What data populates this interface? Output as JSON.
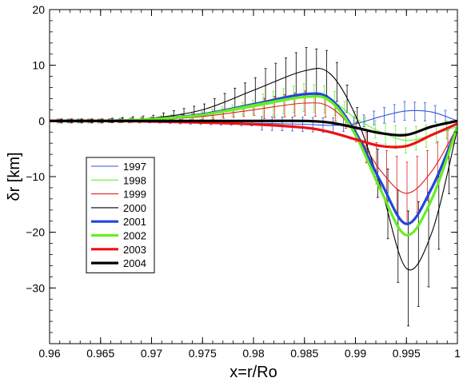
{
  "chart_data": {
    "type": "line",
    "xlabel": "x=r/Ro",
    "ylabel": "δr [km]",
    "xlim": [
      0.96,
      1.0
    ],
    "ylim": [
      -40,
      20
    ],
    "x_ticks": [
      0.96,
      0.965,
      0.97,
      0.975,
      0.98,
      0.985,
      0.99,
      0.995,
      1.0
    ],
    "x_tick_labels": [
      "0.96",
      "0.965",
      "0.97",
      "0.975",
      "0.98",
      "0.985",
      "0.99",
      "0.995",
      "1"
    ],
    "y_ticks": [
      -30,
      -20,
      -10,
      0,
      10,
      20
    ],
    "y_tick_labels": [
      "−30",
      "−20",
      "−10",
      "0",
      "10",
      "20"
    ],
    "grid": false,
    "legend_position": "left",
    "x": [
      0.96,
      0.965,
      0.97,
      0.975,
      0.98,
      0.985,
      0.9875,
      0.99,
      0.9925,
      0.995,
      0.9975,
      1.0
    ],
    "series": [
      {
        "name": "1997",
        "color": "#3355dd",
        "width": 1,
        "values": [
          0,
          0,
          0,
          -0.2,
          -0.4,
          -0.6,
          -0.8,
          -0.5,
          0.8,
          1.8,
          1.6,
          0
        ]
      },
      {
        "name": "1998",
        "color": "#66ee33",
        "width": 1,
        "values": [
          0,
          0,
          0.3,
          1.0,
          2.5,
          4.2,
          3.8,
          0.5,
          -2.0,
          -3.5,
          -2.5,
          -1.0
        ]
      },
      {
        "name": "1999",
        "color": "#dd2222",
        "width": 1,
        "values": [
          0,
          0,
          0.2,
          0.8,
          2.0,
          3.2,
          2.5,
          -2.0,
          -9.0,
          -13.0,
          -9.0,
          -1.0
        ]
      },
      {
        "name": "2000",
        "color": "#000000",
        "width": 1,
        "values": [
          0,
          0,
          0.5,
          2.0,
          5.5,
          9.0,
          8.5,
          1.0,
          -12.0,
          -26.5,
          -20.0,
          -1.5
        ]
      },
      {
        "name": "2001",
        "color": "#2244dd",
        "width": 3,
        "values": [
          0,
          0,
          0.3,
          1.2,
          3.0,
          4.8,
          4.0,
          -2.0,
          -11.0,
          -18.5,
          -12.0,
          -1.0
        ]
      },
      {
        "name": "2002",
        "color": "#66ee22",
        "width": 3,
        "values": [
          0,
          0,
          0.3,
          1.1,
          2.8,
          4.3,
          3.6,
          -2.5,
          -12.5,
          -20.5,
          -14.0,
          -1.0
        ]
      },
      {
        "name": "2003",
        "color": "#ee1111",
        "width": 3,
        "values": [
          0,
          0,
          -0.1,
          -0.3,
          -0.6,
          -1.2,
          -2.0,
          -3.3,
          -4.5,
          -4.5,
          -2.5,
          -0.5
        ]
      },
      {
        "name": "2004",
        "color": "#000000",
        "width": 3,
        "values": [
          0,
          0,
          0,
          0,
          0,
          0,
          -0.3,
          -1.2,
          -2.2,
          -2.5,
          -1.0,
          0
        ]
      }
    ]
  }
}
